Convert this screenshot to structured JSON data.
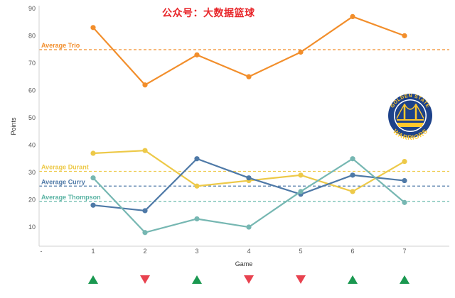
{
  "watermark": "公众号：大数据篮球",
  "logo": {
    "top_text": "GOLDEN STATE",
    "bottom_text": "WARRIORS",
    "blue": "#1d428a",
    "gold": "#ffc72c"
  },
  "chart_data": {
    "type": "line",
    "xlabel": "Game",
    "ylabel": "Points",
    "x": [
      1,
      2,
      3,
      4,
      5,
      6,
      7
    ],
    "xlim_labels": [
      "-",
      "-"
    ],
    "yticks": [
      10,
      20,
      30,
      40,
      50,
      60,
      70,
      80,
      90
    ],
    "ylim": [
      3,
      91
    ],
    "grid": false,
    "series": [
      {
        "name": "Trio",
        "color": "#f28e2b",
        "values": [
          83,
          62,
          73,
          65,
          74,
          87,
          80
        ]
      },
      {
        "name": "Durant",
        "color": "#edc948",
        "values": [
          37,
          38,
          25,
          27,
          29,
          23,
          34
        ]
      },
      {
        "name": "Curry",
        "color": "#4e79a7",
        "values": [
          18,
          16,
          35,
          28,
          22,
          29,
          27
        ]
      },
      {
        "name": "Thompson",
        "color": "#76b7b2",
        "values": [
          28,
          8,
          13,
          10,
          23,
          35,
          19
        ]
      }
    ],
    "averages": [
      {
        "label": "Average Trio",
        "value": 74.9,
        "color": "#f28e2b"
      },
      {
        "label": "Average Durant",
        "value": 30.4,
        "color": "#edc948"
      },
      {
        "label": "Average Curry",
        "value": 25.0,
        "color": "#4e79a7"
      },
      {
        "label": "Average Thompson",
        "value": 19.4,
        "color": "#59b3a3"
      }
    ],
    "results": [
      "win",
      "loss",
      "win",
      "loss",
      "loss",
      "win",
      "win"
    ],
    "result_colors": {
      "win": "#1a9850",
      "loss": "#e8424f"
    }
  }
}
